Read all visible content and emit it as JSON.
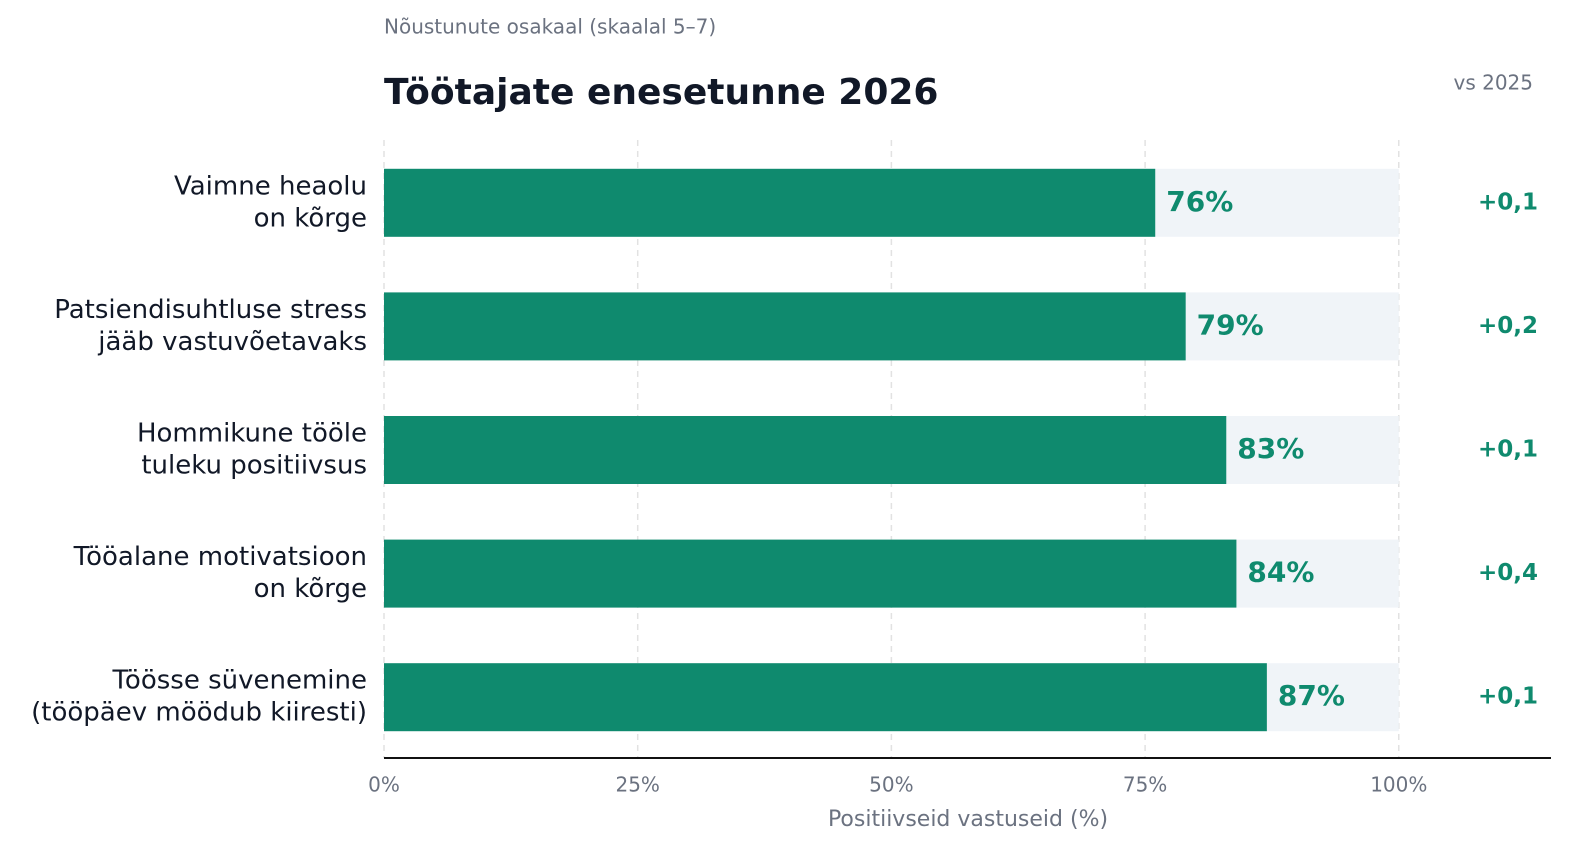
{
  "chart_data": {
    "type": "hbar",
    "subtitle": "Nõustunute osakaal (skaalal 5–7)",
    "title": "Töötajate enesetunne 2026",
    "annotation_header": "vs 2025",
    "categories": [
      [
        "Vaimne heaolu",
        "on kõrge"
      ],
      [
        "Patsiendisuhtluse stress",
        "jääb vastuvõetavaks"
      ],
      [
        "Hommikune tööle",
        "tuleku positiivsus"
      ],
      [
        "Tööalane motivatsioon",
        "on kõrge"
      ],
      [
        "Töösse süvenemine",
        "(tööpäev möödub kiiresti)"
      ]
    ],
    "values": [
      76,
      79,
      83,
      84,
      87
    ],
    "value_labels": [
      "76%",
      "79%",
      "83%",
      "84%",
      "87%"
    ],
    "annotations": [
      "+0,1",
      "+0,2",
      "+0,1",
      "+0,4",
      "+0,1"
    ],
    "color": "#0f8a6e",
    "xlim": [
      0,
      115
    ],
    "xticks": [
      {
        "value": 0,
        "label": "0%"
      },
      {
        "value": 25,
        "label": "25%"
      },
      {
        "value": 50,
        "label": "50%"
      },
      {
        "value": 75,
        "label": "75%"
      },
      {
        "value": 100,
        "label": "100%"
      }
    ],
    "xlabel": "Positiivseid vastuseid (%)",
    "grid": true
  }
}
